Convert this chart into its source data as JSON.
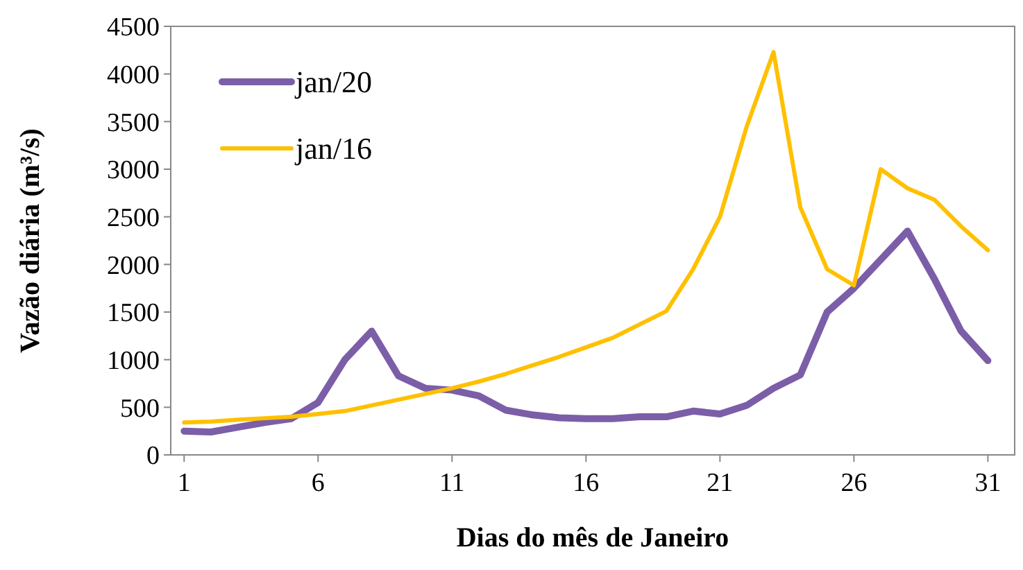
{
  "chart_data": {
    "type": "line",
    "xlabel": "Dias do mês de Janeiro",
    "ylabel": "Vazão diária (m³/s)",
    "x": [
      1,
      2,
      3,
      4,
      5,
      6,
      7,
      8,
      9,
      10,
      11,
      12,
      13,
      14,
      15,
      16,
      17,
      18,
      19,
      20,
      21,
      22,
      23,
      24,
      25,
      26,
      27,
      28,
      29,
      30,
      31
    ],
    "xlim": [
      0.5,
      32
    ],
    "xticks": [
      1,
      6,
      11,
      16,
      21,
      26,
      31
    ],
    "ylim": [
      0,
      4500
    ],
    "yticks": [
      0,
      500,
      1000,
      1500,
      2000,
      2500,
      3000,
      3500,
      4000,
      4500
    ],
    "grid": false,
    "legend": "top left",
    "marker": "none",
    "line_style": "solid",
    "series": [
      {
        "name": "jan/20",
        "color": "#7b5ea7",
        "values": [
          250,
          240,
          290,
          340,
          380,
          550,
          1000,
          1300,
          830,
          700,
          680,
          620,
          470,
          420,
          390,
          380,
          380,
          400,
          400,
          460,
          430,
          520,
          700,
          840,
          1500,
          1750,
          2050,
          2350,
          1850,
          1300,
          990
        ]
      },
      {
        "name": "jan/16",
        "color": "#ffc000",
        "values": [
          340,
          350,
          370,
          385,
          400,
          430,
          460,
          520,
          580,
          640,
          700,
          770,
          850,
          940,
          1030,
          1130,
          1230,
          1370,
          1510,
          1950,
          2500,
          3450,
          4230,
          2600,
          1950,
          1780,
          3000,
          2800,
          2680,
          2400,
          2150
        ]
      }
    ]
  }
}
